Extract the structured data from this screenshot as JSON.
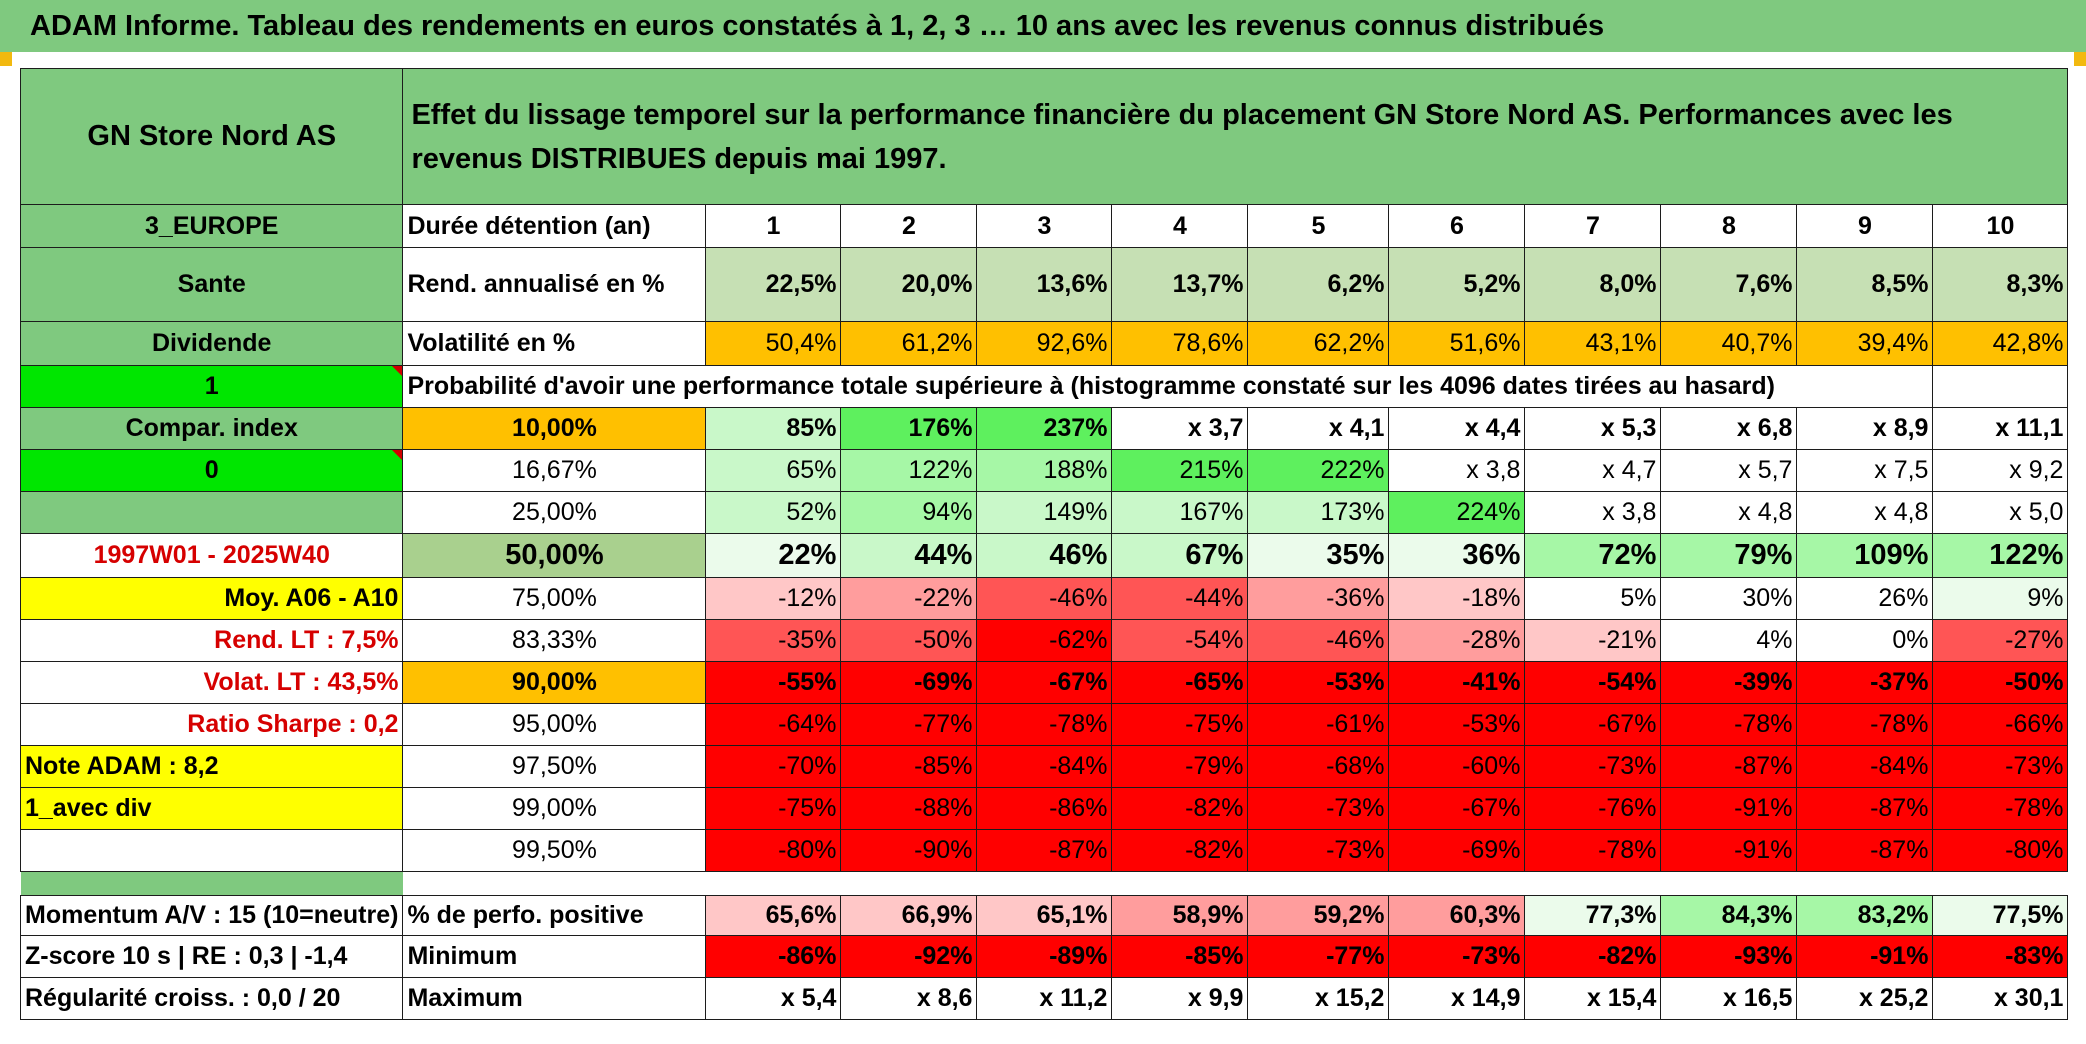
{
  "header": {
    "title": "ADAM Informe. Tableau des rendements en euros constatés à 1, 2, 3 … 10 ans avec les revenus connus distribués"
  },
  "fund": {
    "name": "GN Store Nord AS",
    "description": "Effet du lissage temporel sur la performance financière du placement GN Store Nord AS. Performances avec les revenus DISTRIBUES depuis mai 1997.",
    "region": "3_EUROPE",
    "sector": "Sante",
    "income": "Dividende",
    "flag1": "1",
    "compar_label": "Compar. index",
    "flag0": "0",
    "period": "1997W01 - 2025W40",
    "moy": "Moy. A06 - A10",
    "rend_lt": "Rend. LT :   7,5%",
    "volat_lt": "Volat. LT :   43,5%",
    "sharpe": "Ratio Sharpe :    0,2",
    "note": "Note ADAM : 8,2",
    "variant": "1_avec div"
  },
  "table": {
    "duration_label": "Durée détention (an)",
    "years": [
      "1",
      "2",
      "3",
      "4",
      "5",
      "6",
      "7",
      "8",
      "9",
      "10"
    ],
    "rend_label": "Rend. annualisé en %",
    "rend": [
      "22,5%",
      "20,0%",
      "13,6%",
      "13,7%",
      "6,2%",
      "5,2%",
      "8,0%",
      "7,6%",
      "8,5%",
      "8,3%"
    ],
    "vol_label": "Volatilité en %",
    "vol": [
      "50,4%",
      "61,2%",
      "92,6%",
      "78,6%",
      "62,2%",
      "51,6%",
      "43,1%",
      "40,7%",
      "39,4%",
      "42,8%"
    ],
    "prob_label": "Probabilité d'avoir une performance totale supérieure à (histogramme constaté sur les 4096 dates tirées au hasard)",
    "rows": [
      {
        "pct": "10,00%",
        "vals": [
          "85%",
          "176%",
          "237%",
          "x 3,7",
          "x 4,1",
          "x 4,4",
          "x 5,3",
          "x 6,8",
          "x 8,9",
          "x 11,1"
        ]
      },
      {
        "pct": "16,67%",
        "vals": [
          "65%",
          "122%",
          "188%",
          "215%",
          "222%",
          "x 3,8",
          "x 4,7",
          "x 5,7",
          "x 7,5",
          "x 9,2"
        ]
      },
      {
        "pct": "25,00%",
        "vals": [
          "52%",
          "94%",
          "149%",
          "167%",
          "173%",
          "224%",
          "x 3,8",
          "x 4,8",
          "x 4,8",
          "x 5,0"
        ]
      },
      {
        "pct": "50,00%",
        "vals": [
          "22%",
          "44%",
          "46%",
          "67%",
          "35%",
          "36%",
          "72%",
          "79%",
          "109%",
          "122%"
        ]
      },
      {
        "pct": "75,00%",
        "vals": [
          "-12%",
          "-22%",
          "-46%",
          "-44%",
          "-36%",
          "-18%",
          "5%",
          "30%",
          "26%",
          "9%"
        ]
      },
      {
        "pct": "83,33%",
        "vals": [
          "-35%",
          "-50%",
          "-62%",
          "-54%",
          "-46%",
          "-28%",
          "-21%",
          "4%",
          "0%",
          "-27%"
        ]
      },
      {
        "pct": "90,00%",
        "vals": [
          "-55%",
          "-69%",
          "-67%",
          "-65%",
          "-53%",
          "-41%",
          "-54%",
          "-39%",
          "-37%",
          "-50%"
        ]
      },
      {
        "pct": "95,00%",
        "vals": [
          "-64%",
          "-77%",
          "-78%",
          "-75%",
          "-61%",
          "-53%",
          "-67%",
          "-78%",
          "-78%",
          "-66%"
        ]
      },
      {
        "pct": "97,50%",
        "vals": [
          "-70%",
          "-85%",
          "-84%",
          "-79%",
          "-68%",
          "-60%",
          "-73%",
          "-87%",
          "-84%",
          "-73%"
        ]
      },
      {
        "pct": "99,00%",
        "vals": [
          "-75%",
          "-88%",
          "-86%",
          "-82%",
          "-73%",
          "-67%",
          "-76%",
          "-91%",
          "-87%",
          "-78%"
        ]
      },
      {
        "pct": "99,50%",
        "vals": [
          "-80%",
          "-90%",
          "-87%",
          "-82%",
          "-73%",
          "-69%",
          "-78%",
          "-91%",
          "-87%",
          "-80%"
        ]
      }
    ],
    "momentum": "Momentum A/V : 15 (10=neutre)",
    "zscore": "Z-score 10 s | RE : 0,3 | -1,4",
    "regularite": "Régularité croiss. : 0,0 / 20",
    "pos_label": "% de perfo. positive",
    "pos": [
      "65,6%",
      "66,9%",
      "65,1%",
      "58,9%",
      "59,2%",
      "60,3%",
      "77,3%",
      "84,3%",
      "83,2%",
      "77,5%"
    ],
    "min_label": "Minimum",
    "min": [
      "-86%",
      "-92%",
      "-89%",
      "-85%",
      "-77%",
      "-73%",
      "-82%",
      "-93%",
      "-91%",
      "-83%"
    ],
    "max_label": "Maximum",
    "max": [
      "x 5,4",
      "x 8,6",
      "x 11,2",
      "x 9,9",
      "x 15,2",
      "x 14,9",
      "x 15,4",
      "x 16,5",
      "x 25,2",
      "x 30,1"
    ]
  }
}
